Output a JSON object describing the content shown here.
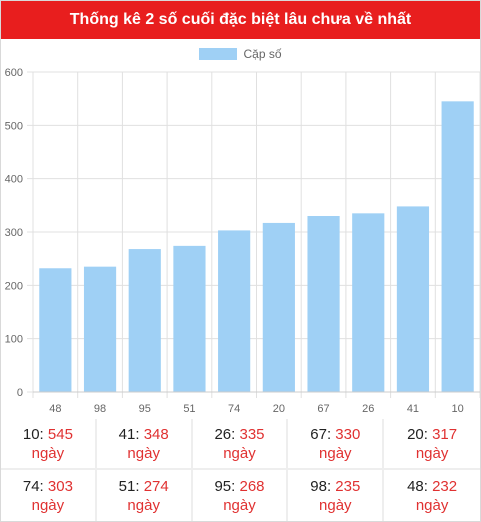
{
  "header": {
    "title": "Thống kê 2 số cuối đặc biệt lâu chưa về nhất"
  },
  "chart_data": {
    "type": "bar",
    "title": "",
    "legend": {
      "label": "Cặp số",
      "position": "top-center"
    },
    "categories": [
      "48",
      "98",
      "95",
      "51",
      "74",
      "20",
      "67",
      "26",
      "41",
      "10"
    ],
    "values": [
      232,
      235,
      268,
      274,
      303,
      317,
      330,
      335,
      348,
      545
    ],
    "ylim": [
      0,
      600
    ],
    "yticks": [
      0,
      100,
      200,
      300,
      400,
      500,
      600
    ],
    "grid": true,
    "bar_color": "#9fd0f5"
  },
  "stats": {
    "unit": "ngày",
    "items": [
      {
        "num": "10",
        "days": "545"
      },
      {
        "num": "41",
        "days": "348"
      },
      {
        "num": "26",
        "days": "335"
      },
      {
        "num": "67",
        "days": "330"
      },
      {
        "num": "20",
        "days": "317"
      },
      {
        "num": "74",
        "days": "303"
      },
      {
        "num": "51",
        "days": "274"
      },
      {
        "num": "95",
        "days": "268"
      },
      {
        "num": "98",
        "days": "235"
      },
      {
        "num": "48",
        "days": "232"
      }
    ]
  }
}
